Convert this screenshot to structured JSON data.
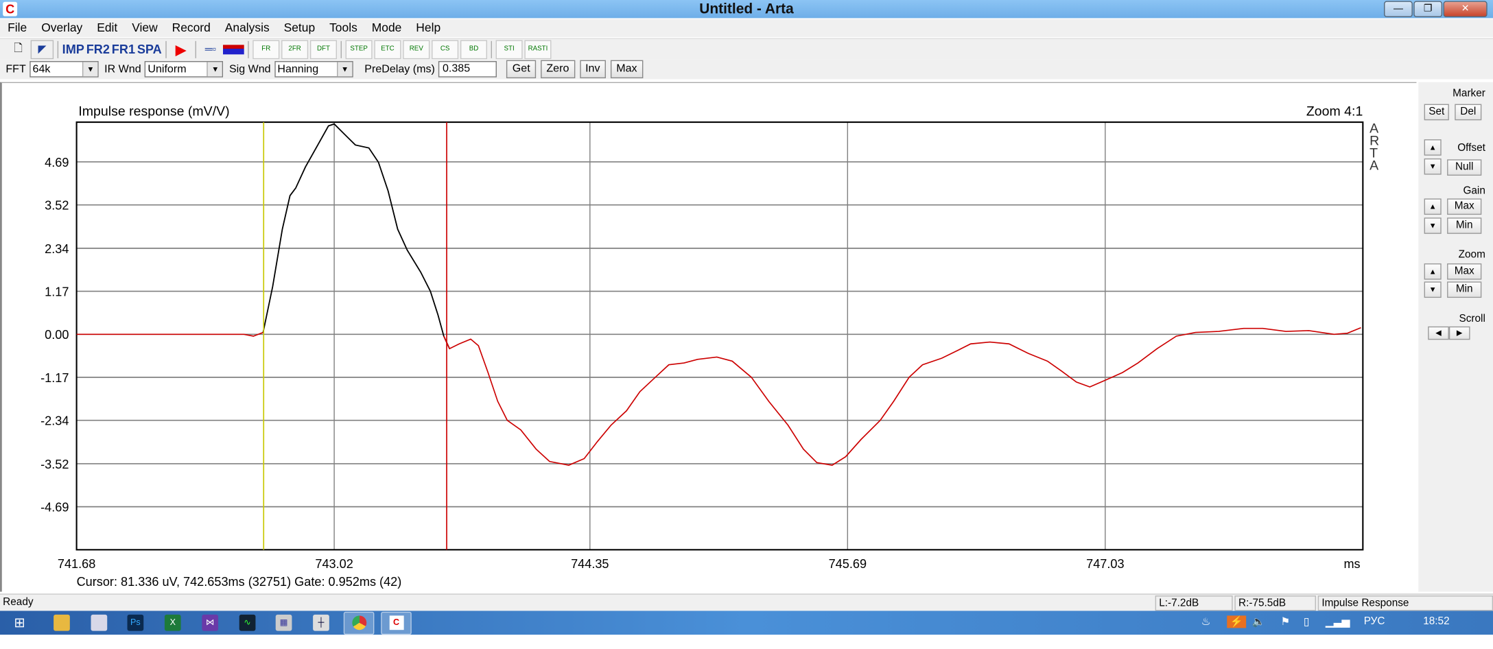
{
  "window": {
    "title": "Untitled - Arta",
    "app_icon": "arta-logo-icon"
  },
  "menu": [
    "File",
    "Overlay",
    "Edit",
    "View",
    "Record",
    "Analysis",
    "Setup",
    "Tools",
    "Mode",
    "Help"
  ],
  "toolbar": {
    "imp": "IMP",
    "fr2": "FR2",
    "fr1": "FR1",
    "spa": "SPA",
    "icons": [
      "FR",
      "2FR",
      "DFT",
      "STEP",
      "ETC",
      "REV",
      "CS",
      "BD",
      "STI",
      "RASTI"
    ]
  },
  "params": {
    "fft_label": "FFT",
    "fft_value": "64k",
    "ir_wnd_label": "IR Wnd",
    "ir_wnd_value": "Uniform",
    "sig_wnd_label": "Sig Wnd",
    "sig_wnd_value": "Hanning",
    "predelay_label": "PreDelay (ms)",
    "predelay_value": "0.385",
    "get": "Get",
    "zero": "Zero",
    "inv": "Inv",
    "max": "Max"
  },
  "right_panel": {
    "marker": "Marker",
    "set": "Set",
    "del": "Del",
    "offset": "Offset",
    "null": "Null",
    "gain": "Gain",
    "gain_max": "Max",
    "gain_min": "Min",
    "zoom": "Zoom",
    "zoom_max": "Max",
    "zoom_min": "Min",
    "scroll": "Scroll"
  },
  "chart_data": {
    "type": "line",
    "title": "Impulse response (mV/V)",
    "zoom_label": "Zoom 4:1",
    "watermark": "ARTA",
    "xlabel": "ms",
    "xlim": [
      741.68,
      748.37
    ],
    "ylim": [
      -5.86,
      5.77
    ],
    "xticks": [
      "741.68",
      "743.02",
      "744.35",
      "745.69",
      "747.03"
    ],
    "yticks": [
      "4.69",
      "3.52",
      "2.34",
      "1.17",
      "0.00",
      "-1.17",
      "-2.34",
      "-3.52",
      "-4.69"
    ],
    "grid": true,
    "window_color": "#000000",
    "curve_color": "#cc0000",
    "cursor_marker": {
      "x": 742.653,
      "color": "#c8c800"
    },
    "gate_marker": {
      "x": 743.605,
      "color": "#cc0000"
    },
    "x": [
      741.68,
      742.55,
      742.6,
      742.65,
      742.7,
      742.75,
      742.79,
      742.82,
      742.87,
      742.94,
      742.99,
      743.02,
      743.07,
      743.13,
      743.2,
      743.25,
      743.3,
      743.35,
      743.4,
      743.47,
      743.52,
      743.56,
      743.59,
      743.62,
      743.67,
      743.73,
      743.77,
      743.82,
      743.87,
      743.92,
      743.99,
      744.07,
      744.14,
      744.24,
      744.32,
      744.39,
      744.46,
      744.54,
      744.61,
      744.69,
      744.76,
      744.84,
      744.91,
      745.01,
      745.09,
      745.19,
      745.28,
      745.38,
      745.46,
      745.53,
      745.61,
      745.68,
      745.76,
      745.86,
      745.93,
      746.01,
      746.08,
      746.18,
      746.25,
      746.33,
      746.43,
      746.53,
      746.63,
      746.73,
      746.8,
      746.88,
      746.95,
      747.03,
      747.12,
      747.2,
      747.3,
      747.4,
      747.5,
      747.62,
      747.75,
      747.85,
      747.97,
      748.09,
      748.22,
      748.29,
      748.36
    ],
    "y": [
      0,
      0,
      -0.05,
      0.05,
      1.3,
      2.86,
      3.77,
      3.98,
      4.55,
      5.2,
      5.67,
      5.72,
      5.46,
      5.15,
      5.07,
      4.68,
      3.9,
      2.86,
      2.29,
      1.69,
      1.17,
      0.52,
      -0.05,
      -0.39,
      -0.26,
      -0.13,
      -0.31,
      -1.04,
      -1.82,
      -2.34,
      -2.6,
      -3.12,
      -3.46,
      -3.56,
      -3.38,
      -2.91,
      -2.47,
      -2.08,
      -1.56,
      -1.17,
      -0.83,
      -0.78,
      -0.68,
      -0.62,
      -0.73,
      -1.17,
      -1.82,
      -2.47,
      -3.12,
      -3.49,
      -3.56,
      -3.33,
      -2.86,
      -2.34,
      -1.82,
      -1.17,
      -0.83,
      -0.65,
      -0.47,
      -0.26,
      -0.21,
      -0.26,
      -0.52,
      -0.73,
      -0.99,
      -1.3,
      -1.43,
      -1.25,
      -1.04,
      -0.78,
      -0.39,
      -0.05,
      0.05,
      0.08,
      0.16,
      0.16,
      0.08,
      0.1,
      0,
      0.03,
      0.18
    ]
  },
  "readout": "Cursor: 81.336 uV, 742.653ms (32751)  Gate: 0.952ms (42)",
  "status": {
    "ready": "Ready",
    "left": "L:-7.2dB",
    "right": "R:-75.5dB",
    "mode": "Impulse Response"
  },
  "taskbar": {
    "lang": "РУС",
    "time": "18:52",
    "apps": [
      "explorer",
      "paint",
      "photoshop",
      "excel",
      "visual-studio",
      "oscilloscope",
      "calculator",
      "tool",
      "chrome",
      "arta"
    ]
  }
}
